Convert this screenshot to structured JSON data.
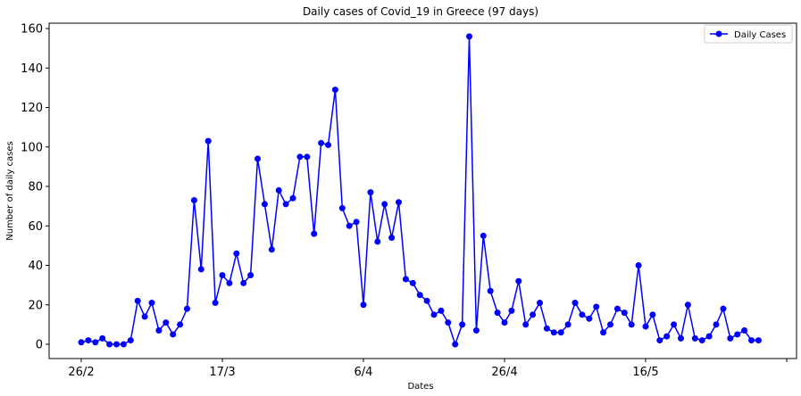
{
  "chart_data": {
    "type": "line",
    "title": "Daily cases of Covid_19 in Greece (97 days)",
    "xlabel": "Dates",
    "ylabel": "Number of daily cases",
    "x_tick_labels": [
      "26/2",
      "17/3",
      "6/4",
      "26/4",
      "16/5"
    ],
    "y_ticks": [
      0,
      20,
      40,
      60,
      80,
      100,
      120,
      140,
      160
    ],
    "ylim": [
      -8,
      165
    ],
    "grid": false,
    "legend_position": "upper-right",
    "series": [
      {
        "name": "Daily Cases",
        "color": "#0000ff",
        "marker": "circle",
        "values": [
          1,
          2,
          1,
          3,
          0,
          0,
          0,
          2,
          22,
          14,
          21,
          7,
          11,
          5,
          10,
          18,
          73,
          38,
          103,
          21,
          35,
          31,
          46,
          31,
          35,
          94,
          71,
          48,
          78,
          71,
          74,
          95,
          95,
          56,
          102,
          101,
          129,
          69,
          60,
          62,
          20,
          77,
          52,
          71,
          54,
          72,
          33,
          31,
          25,
          22,
          15,
          17,
          11,
          0,
          10,
          156,
          7,
          55,
          27,
          16,
          11,
          17,
          32,
          10,
          15,
          21,
          8,
          6,
          6,
          10,
          21,
          15,
          13,
          19,
          6,
          10,
          18,
          16,
          10,
          40,
          9,
          15,
          2,
          4,
          10,
          3,
          20,
          3,
          2,
          4,
          10,
          18,
          3,
          5,
          7,
          2,
          2
        ]
      }
    ]
  }
}
